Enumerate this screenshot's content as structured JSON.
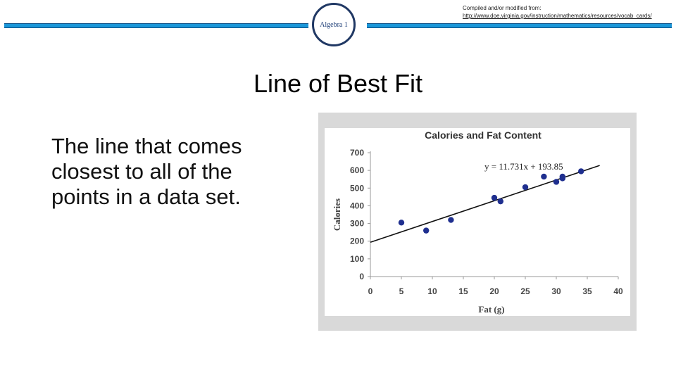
{
  "header": {
    "course_label": "Algebra 1",
    "source_line1": "Compiled and/or modified from:",
    "source_line2": "http://www.doe.virginia.gov/instruction/mathematics/resources/vocab_cards/",
    "accent_color": "#1a96d8",
    "circle_color": "#203864"
  },
  "slide": {
    "title": "Line of Best Fit",
    "definition": "The line that comes closest to all of the points in a data set."
  },
  "chart_data": {
    "type": "scatter",
    "title": "Calories and Fat Content",
    "xlabel": "Fat (g)",
    "ylabel": "Calories",
    "xlim": [
      0,
      40
    ],
    "ylim": [
      0,
      700
    ],
    "x_ticks": [
      0,
      5,
      10,
      15,
      20,
      25,
      30,
      35,
      40
    ],
    "y_ticks": [
      0,
      100,
      200,
      300,
      400,
      500,
      600,
      700
    ],
    "grid": false,
    "point_color": "#1f2f8f",
    "points": [
      {
        "x": 5,
        "y": 305
      },
      {
        "x": 9,
        "y": 260
      },
      {
        "x": 13,
        "y": 320
      },
      {
        "x": 20,
        "y": 445
      },
      {
        "x": 21,
        "y": 425
      },
      {
        "x": 25,
        "y": 505
      },
      {
        "x": 28,
        "y": 565
      },
      {
        "x": 30,
        "y": 535
      },
      {
        "x": 31,
        "y": 555
      },
      {
        "x": 31,
        "y": 565
      },
      {
        "x": 34,
        "y": 595
      }
    ],
    "trendline": {
      "slope": 11.731,
      "intercept": 193.85,
      "x_range": [
        0,
        37
      ],
      "equation": "y = 11.731x + 193.85"
    }
  }
}
